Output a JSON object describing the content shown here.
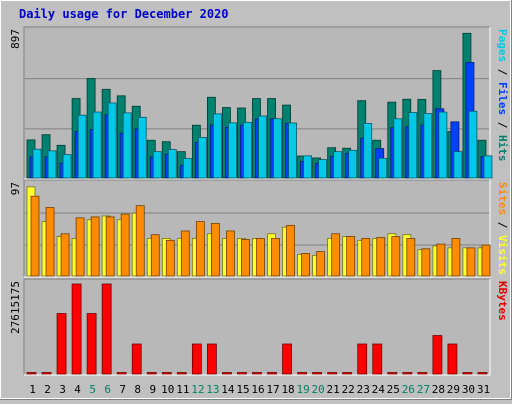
{
  "chart_data": {
    "type": "bar",
    "title": "Daily usage for December 2020",
    "categories": [
      "1",
      "2",
      "3",
      "4",
      "5",
      "6",
      "7",
      "8",
      "9",
      "10",
      "11",
      "12",
      "13",
      "14",
      "15",
      "16",
      "17",
      "18",
      "19",
      "20",
      "21",
      "22",
      "23",
      "24",
      "25",
      "26",
      "27",
      "28",
      "29",
      "30",
      "31"
    ],
    "weekend_days": [
      "5",
      "6",
      "12",
      "13",
      "19",
      "20",
      "26",
      "27"
    ],
    "panels": [
      {
        "name": "top",
        "ymax": 897,
        "ymax_label": "897",
        "right_label_parts": [
          {
            "text": "Pages",
            "color": "#00c8e6"
          },
          {
            "text": " / ",
            "color": "#000000"
          },
          {
            "text": "Files",
            "color": "#0040ff"
          },
          {
            "text": " / ",
            "color": "#000000"
          },
          {
            "text": "Hits",
            "color": "#00806e"
          }
        ],
        "series": [
          {
            "name": "Hits",
            "color": "#00806e",
            "values": [
              234,
              266,
              201,
              488,
              611,
              545,
              505,
              441,
              232,
              223,
              162,
              324,
              496,
              433,
              430,
              488,
              488,
              448,
              135,
              123,
              186,
              183,
              475,
              232,
              466,
              484,
              483,
              660,
              285,
              889,
              232
            ]
          },
          {
            "name": "Files",
            "color": "#0040ff",
            "values": [
              130,
              130,
              92,
              286,
              298,
              388,
              276,
              302,
              130,
              145,
              77,
              218,
              326,
              312,
              325,
              362,
              364,
              336,
              101,
              90,
              132,
              152,
              245,
              181,
              309,
              315,
              325,
              425,
              345,
              710,
              131
            ]
          },
          {
            "name": "Pages",
            "color": "#00c8e6",
            "values": [
              177,
              167,
              144,
              386,
              405,
              461,
              400,
              373,
              162,
              175,
              120,
              249,
              394,
              339,
              342,
              381,
              364,
              338,
              136,
              113,
              162,
              170,
              335,
              121,
              364,
              402,
              396,
              405,
              162,
              410,
              136
            ]
          }
        ]
      },
      {
        "name": "middle",
        "ymax": 97,
        "ymax_label": "97",
        "right_label_parts": [
          {
            "text": "Sites",
            "color": "#ff8c00"
          },
          {
            "text": " / ",
            "color": "#000000"
          },
          {
            "text": "Visits",
            "color": "#ffff30"
          }
        ],
        "series": [
          {
            "name": "Visits",
            "color": "#ffff30",
            "values": [
              95,
              58,
              42,
              40,
              60,
              64,
              60,
              67,
              40,
              40,
              40,
              40,
              45,
              40,
              40,
              40,
              45,
              52,
              23,
              22,
              40,
              42,
              38,
              40,
              45,
              44,
              28,
              32,
              30,
              30,
              30
            ]
          },
          {
            "name": "Sites",
            "color": "#ff8c00",
            "values": [
              85,
              73,
              45,
              62,
              63,
              63,
              66,
              75,
              44,
              38,
              48,
              58,
              56,
              48,
              39,
              40,
              40,
              54,
              24,
              26,
              45,
              42,
              40,
              41,
              42,
              40,
              29,
              34,
              40,
              30,
              33
            ]
          }
        ]
      },
      {
        "name": "bottom",
        "ymax": 27615175,
        "ymax_label": "27615175",
        "right_label_parts": [
          {
            "text": "KBytes",
            "color": "#e60000"
          }
        ],
        "series": [
          {
            "name": "KBytes",
            "color": "#ff0000",
            "values": [
              0,
              0,
              18550000,
              27615175,
              18550000,
              27615175,
              0,
              9200000,
              0,
              0,
              0,
              9200000,
              9200000,
              0,
              0,
              0,
              0,
              9200000,
              0,
              0,
              0,
              0,
              9200000,
              9200000,
              0,
              0,
              0,
              11800000,
              9200000,
              0,
              0
            ]
          }
        ]
      }
    ],
    "colors": {
      "background": "#c0c0c0",
      "plot_background": "#b8b8b8",
      "grid": "#808080",
      "title": "#0000cc",
      "axis_text": "#000000",
      "weekend_text": "#008060"
    }
  }
}
